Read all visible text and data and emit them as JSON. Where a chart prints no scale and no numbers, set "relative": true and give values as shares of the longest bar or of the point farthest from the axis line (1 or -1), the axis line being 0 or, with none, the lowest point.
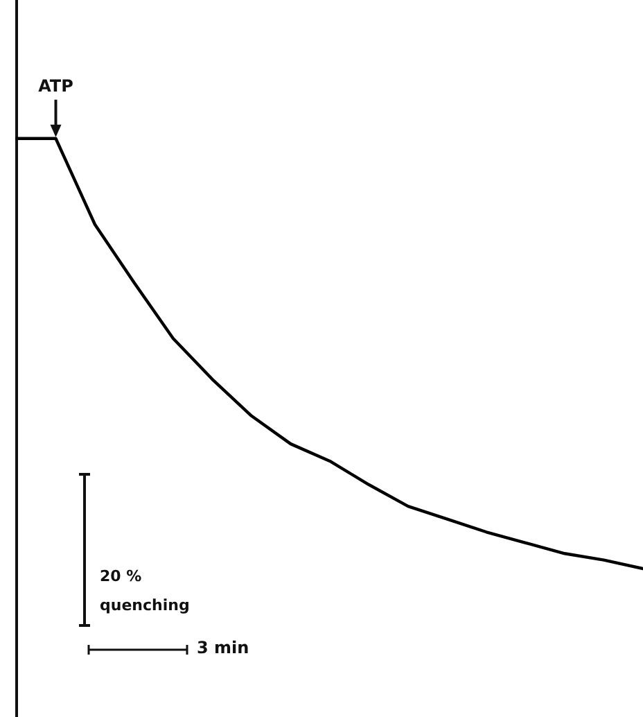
{
  "chart_data": {
    "type": "line",
    "relative": true,
    "grid": false,
    "legend": false,
    "marker": "none",
    "categories": [
      null,
      null,
      null,
      null,
      null,
      null,
      null,
      null,
      null,
      null,
      null,
      null,
      null,
      null,
      null,
      null,
      null
    ],
    "series": [
      {
        "color": "#000000",
        "values": [
          1,
          1,
          0.8,
          0.665,
          0.535,
          0.44,
          0.355,
          0.29,
          0.25,
          0.195,
          0.145,
          0.115,
          0.085,
          0.06,
          0.035,
          0.02,
          0
        ]
      }
    ],
    "annotations": [
      "ATP",
      "20 % quenching",
      "3 min"
    ]
  }
}
